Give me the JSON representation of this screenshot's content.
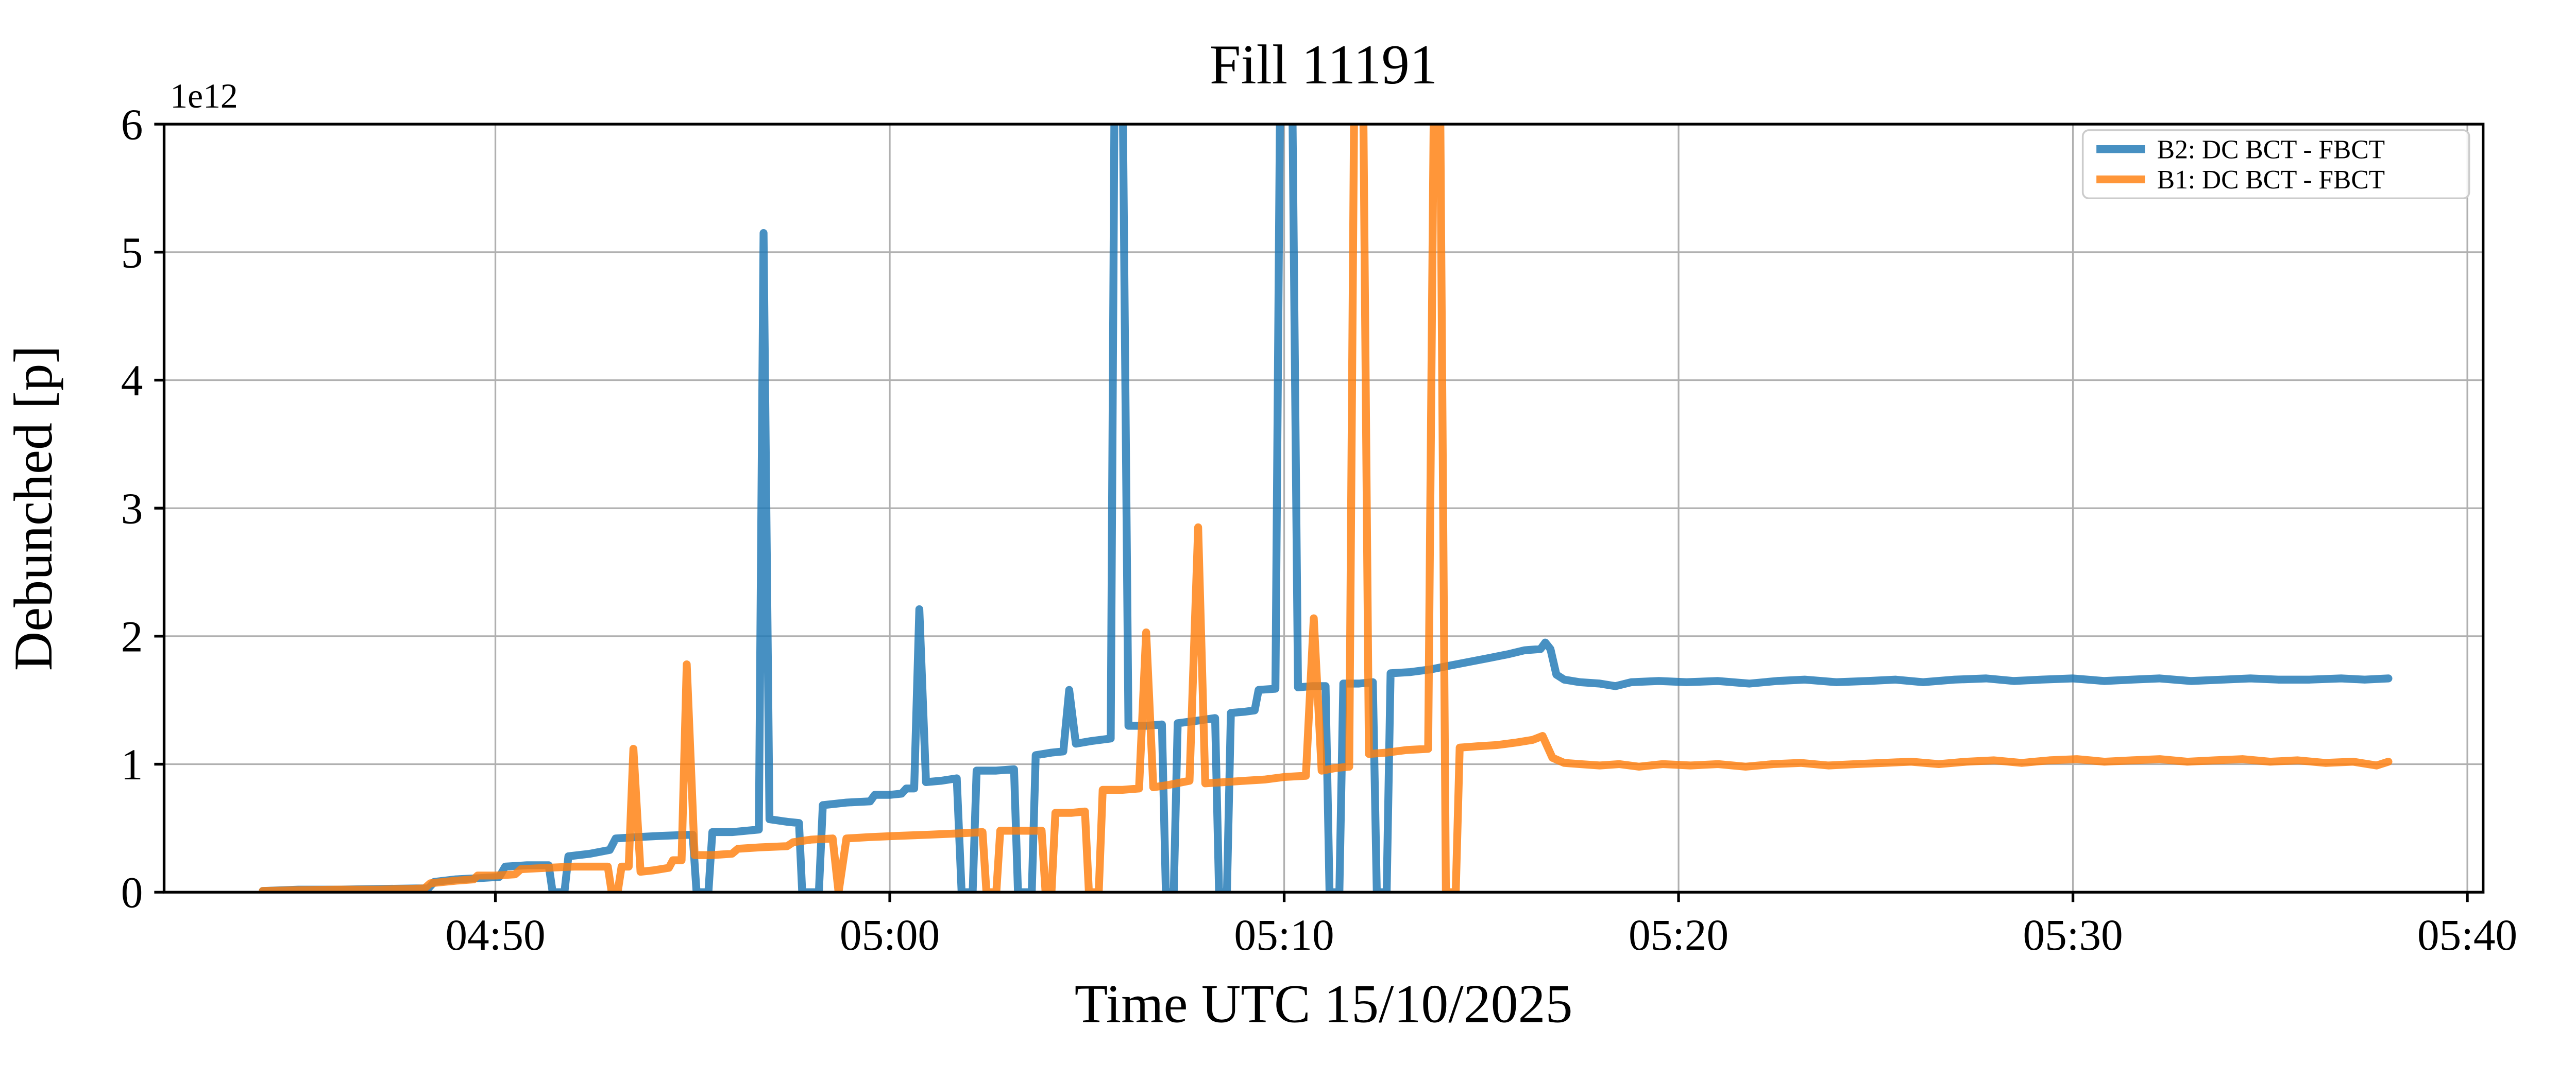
{
  "title": "Fill 11191",
  "colors": {
    "b2_blue": "#1f77b4",
    "b1_orange": "#ff7f0e",
    "grid": "#b0b0b0",
    "spine": "#000000",
    "legend_border": "#cccccc",
    "background": "#ffffff"
  },
  "chart_data": {
    "type": "line",
    "title": "Fill 11191",
    "xlabel": "Time UTC 15/10/2025",
    "ylabel": "Debunched [p]",
    "y_offset_label": "1e12",
    "grid": true,
    "legend_position": "upper right",
    "x_tick_labels": [
      "04:50",
      "05:00",
      "05:10",
      "05:20",
      "05:30",
      "05:40"
    ],
    "x_tick_minutes": [
      10,
      20,
      30,
      40,
      50,
      60
    ],
    "x_unit": "minutes after 04:40 UTC",
    "xlim_minutes": [
      1.6,
      60.4
    ],
    "y_tick_labels": [
      "0",
      "1",
      "2",
      "3",
      "4",
      "5",
      "6"
    ],
    "y_ticks": [
      0,
      1,
      2,
      3,
      4,
      5,
      6
    ],
    "ylim": [
      0,
      6
    ],
    "y_scale_factor": "1e12",
    "line_alpha": 0.82,
    "series": [
      {
        "name": "B2: DC BCT - FBCT",
        "color": "#1f77b4",
        "points": [
          [
            4.1,
            0.01
          ],
          [
            5.0,
            0.02
          ],
          [
            6.0,
            0.02
          ],
          [
            7.0,
            0.025
          ],
          [
            8.0,
            0.03
          ],
          [
            8.3,
            0.03
          ],
          [
            8.45,
            0.08
          ],
          [
            9.0,
            0.1
          ],
          [
            9.6,
            0.11
          ],
          [
            10.1,
            0.12
          ],
          [
            10.25,
            0.2
          ],
          [
            10.8,
            0.21
          ],
          [
            11.35,
            0.21
          ],
          [
            11.45,
            0.0
          ],
          [
            11.75,
            0.0
          ],
          [
            11.85,
            0.28
          ],
          [
            12.4,
            0.3
          ],
          [
            12.9,
            0.33
          ],
          [
            13.05,
            0.42
          ],
          [
            13.6,
            0.43
          ],
          [
            14.2,
            0.44
          ],
          [
            15.0,
            0.45
          ],
          [
            15.1,
            0.0
          ],
          [
            15.4,
            0.0
          ],
          [
            15.5,
            0.47
          ],
          [
            16.0,
            0.47
          ],
          [
            16.68,
            0.49
          ],
          [
            16.8,
            5.15
          ],
          [
            16.95,
            0.57
          ],
          [
            17.4,
            0.55
          ],
          [
            17.7,
            0.54
          ],
          [
            17.78,
            0.0
          ],
          [
            18.2,
            0.0
          ],
          [
            18.3,
            0.68
          ],
          [
            18.9,
            0.7
          ],
          [
            19.5,
            0.71
          ],
          [
            19.62,
            0.76
          ],
          [
            20.0,
            0.76
          ],
          [
            20.3,
            0.77
          ],
          [
            20.42,
            0.81
          ],
          [
            20.62,
            0.81
          ],
          [
            20.75,
            2.21
          ],
          [
            20.92,
            0.86
          ],
          [
            21.3,
            0.87
          ],
          [
            21.7,
            0.89
          ],
          [
            21.82,
            0.0
          ],
          [
            22.1,
            0.0
          ],
          [
            22.2,
            0.95
          ],
          [
            22.7,
            0.95
          ],
          [
            23.15,
            0.96
          ],
          [
            23.25,
            0.0
          ],
          [
            23.6,
            0.0
          ],
          [
            23.7,
            1.07
          ],
          [
            24.1,
            1.09
          ],
          [
            24.4,
            1.1
          ],
          [
            24.55,
            1.58
          ],
          [
            24.72,
            1.16
          ],
          [
            25.1,
            1.18
          ],
          [
            25.6,
            1.2
          ],
          [
            25.7,
            6.4
          ],
          [
            25.9,
            6.4
          ],
          [
            26.05,
            1.3
          ],
          [
            26.5,
            1.3
          ],
          [
            26.9,
            1.31
          ],
          [
            27.0,
            0.0
          ],
          [
            27.2,
            0.0
          ],
          [
            27.3,
            1.32
          ],
          [
            27.8,
            1.34
          ],
          [
            28.25,
            1.36
          ],
          [
            28.35,
            0.0
          ],
          [
            28.55,
            0.0
          ],
          [
            28.65,
            1.4
          ],
          [
            29.0,
            1.41
          ],
          [
            29.25,
            1.42
          ],
          [
            29.35,
            1.58
          ],
          [
            29.78,
            1.59
          ],
          [
            29.9,
            6.4
          ],
          [
            30.2,
            6.4
          ],
          [
            30.35,
            1.6
          ],
          [
            30.7,
            1.61
          ],
          [
            31.05,
            1.61
          ],
          [
            31.15,
            0.0
          ],
          [
            31.4,
            0.0
          ],
          [
            31.5,
            1.63
          ],
          [
            31.9,
            1.63
          ],
          [
            32.25,
            1.64
          ],
          [
            32.35,
            0.0
          ],
          [
            32.6,
            0.0
          ],
          [
            32.7,
            1.71
          ],
          [
            33.2,
            1.72
          ],
          [
            33.7,
            1.74
          ],
          [
            34.2,
            1.77
          ],
          [
            34.7,
            1.8
          ],
          [
            35.2,
            1.83
          ],
          [
            35.7,
            1.86
          ],
          [
            36.1,
            1.89
          ],
          [
            36.5,
            1.9
          ],
          [
            36.62,
            1.95
          ],
          [
            36.75,
            1.9
          ],
          [
            36.9,
            1.7
          ],
          [
            37.1,
            1.66
          ],
          [
            37.5,
            1.64
          ],
          [
            38.0,
            1.63
          ],
          [
            38.4,
            1.61
          ],
          [
            38.8,
            1.64
          ],
          [
            39.5,
            1.65
          ],
          [
            40.2,
            1.64
          ],
          [
            41.0,
            1.65
          ],
          [
            41.8,
            1.63
          ],
          [
            42.5,
            1.65
          ],
          [
            43.2,
            1.66
          ],
          [
            44.0,
            1.64
          ],
          [
            44.8,
            1.65
          ],
          [
            45.5,
            1.66
          ],
          [
            46.2,
            1.64
          ],
          [
            47.0,
            1.66
          ],
          [
            47.8,
            1.67
          ],
          [
            48.5,
            1.65
          ],
          [
            49.2,
            1.66
          ],
          [
            50.0,
            1.67
          ],
          [
            50.8,
            1.65
          ],
          [
            51.5,
            1.66
          ],
          [
            52.2,
            1.67
          ],
          [
            53.0,
            1.65
          ],
          [
            53.8,
            1.66
          ],
          [
            54.5,
            1.67
          ],
          [
            55.2,
            1.66
          ],
          [
            56.0,
            1.66
          ],
          [
            56.8,
            1.67
          ],
          [
            57.4,
            1.66
          ],
          [
            58.0,
            1.67
          ]
        ]
      },
      {
        "name": "B1: DC BCT - FBCT",
        "color": "#ff7f0e",
        "points": [
          [
            4.1,
            0.01
          ],
          [
            5.0,
            0.015
          ],
          [
            6.0,
            0.02
          ],
          [
            7.0,
            0.02
          ],
          [
            7.8,
            0.025
          ],
          [
            8.2,
            0.03
          ],
          [
            8.35,
            0.07
          ],
          [
            9.0,
            0.09
          ],
          [
            9.45,
            0.1
          ],
          [
            9.55,
            0.13
          ],
          [
            10.0,
            0.13
          ],
          [
            10.5,
            0.14
          ],
          [
            10.65,
            0.18
          ],
          [
            11.3,
            0.19
          ],
          [
            12.0,
            0.2
          ],
          [
            12.85,
            0.2
          ],
          [
            12.95,
            0.0
          ],
          [
            13.1,
            0.0
          ],
          [
            13.2,
            0.2
          ],
          [
            13.38,
            0.2
          ],
          [
            13.5,
            1.12
          ],
          [
            13.68,
            0.16
          ],
          [
            14.0,
            0.17
          ],
          [
            14.4,
            0.19
          ],
          [
            14.5,
            0.25
          ],
          [
            14.72,
            0.25
          ],
          [
            14.85,
            1.78
          ],
          [
            15.05,
            0.29
          ],
          [
            15.5,
            0.29
          ],
          [
            16.0,
            0.3
          ],
          [
            16.15,
            0.34
          ],
          [
            16.7,
            0.35
          ],
          [
            17.4,
            0.36
          ],
          [
            17.55,
            0.39
          ],
          [
            18.0,
            0.41
          ],
          [
            18.55,
            0.42
          ],
          [
            18.7,
            0.0
          ],
          [
            18.9,
            0.42
          ],
          [
            19.5,
            0.43
          ],
          [
            20.2,
            0.44
          ],
          [
            21.0,
            0.45
          ],
          [
            21.8,
            0.46
          ],
          [
            22.35,
            0.47
          ],
          [
            22.45,
            0.0
          ],
          [
            22.7,
            0.0
          ],
          [
            22.8,
            0.48
          ],
          [
            23.3,
            0.48
          ],
          [
            23.85,
            0.48
          ],
          [
            23.95,
            0.0
          ],
          [
            24.1,
            0.0
          ],
          [
            24.2,
            0.62
          ],
          [
            24.6,
            0.62
          ],
          [
            24.95,
            0.63
          ],
          [
            25.05,
            0.0
          ],
          [
            25.3,
            0.0
          ],
          [
            25.4,
            0.8
          ],
          [
            25.9,
            0.8
          ],
          [
            26.32,
            0.81
          ],
          [
            26.5,
            2.03
          ],
          [
            26.68,
            0.82
          ],
          [
            27.1,
            0.84
          ],
          [
            27.6,
            0.87
          ],
          [
            27.82,
            2.85
          ],
          [
            28.0,
            0.85
          ],
          [
            28.5,
            0.86
          ],
          [
            29.0,
            0.87
          ],
          [
            29.5,
            0.88
          ],
          [
            30.0,
            0.9
          ],
          [
            30.55,
            0.91
          ],
          [
            30.75,
            2.14
          ],
          [
            30.95,
            0.95
          ],
          [
            31.3,
            0.97
          ],
          [
            31.65,
            0.98
          ],
          [
            31.78,
            6.4
          ],
          [
            32.0,
            6.4
          ],
          [
            32.15,
            1.08
          ],
          [
            32.6,
            1.09
          ],
          [
            33.1,
            1.11
          ],
          [
            33.65,
            1.12
          ],
          [
            33.8,
            6.4
          ],
          [
            33.95,
            6.4
          ],
          [
            34.1,
            0.0
          ],
          [
            34.35,
            0.0
          ],
          [
            34.45,
            1.13
          ],
          [
            34.9,
            1.14
          ],
          [
            35.4,
            1.15
          ],
          [
            35.9,
            1.17
          ],
          [
            36.3,
            1.19
          ],
          [
            36.55,
            1.22
          ],
          [
            36.8,
            1.05
          ],
          [
            37.1,
            1.01
          ],
          [
            37.5,
            1.0
          ],
          [
            38.0,
            0.99
          ],
          [
            38.5,
            1.0
          ],
          [
            39.0,
            0.98
          ],
          [
            39.6,
            1.0
          ],
          [
            40.3,
            0.99
          ],
          [
            41.0,
            1.0
          ],
          [
            41.7,
            0.98
          ],
          [
            42.4,
            1.0
          ],
          [
            43.1,
            1.01
          ],
          [
            43.8,
            0.99
          ],
          [
            44.5,
            1.0
          ],
          [
            45.2,
            1.01
          ],
          [
            45.9,
            1.02
          ],
          [
            46.6,
            1.0
          ],
          [
            47.3,
            1.02
          ],
          [
            48.0,
            1.03
          ],
          [
            48.7,
            1.01
          ],
          [
            49.4,
            1.03
          ],
          [
            50.1,
            1.04
          ],
          [
            50.8,
            1.02
          ],
          [
            51.5,
            1.03
          ],
          [
            52.2,
            1.04
          ],
          [
            52.9,
            1.02
          ],
          [
            53.6,
            1.03
          ],
          [
            54.3,
            1.04
          ],
          [
            55.0,
            1.02
          ],
          [
            55.7,
            1.03
          ],
          [
            56.4,
            1.01
          ],
          [
            57.1,
            1.02
          ],
          [
            57.7,
            0.99
          ],
          [
            58.0,
            1.02
          ]
        ]
      }
    ]
  },
  "legend": {
    "entries": [
      {
        "label": "B2: DC BCT - FBCT",
        "color": "#1f77b4"
      },
      {
        "label": "B1: DC BCT - FBCT",
        "color": "#ff7f0e"
      }
    ]
  }
}
